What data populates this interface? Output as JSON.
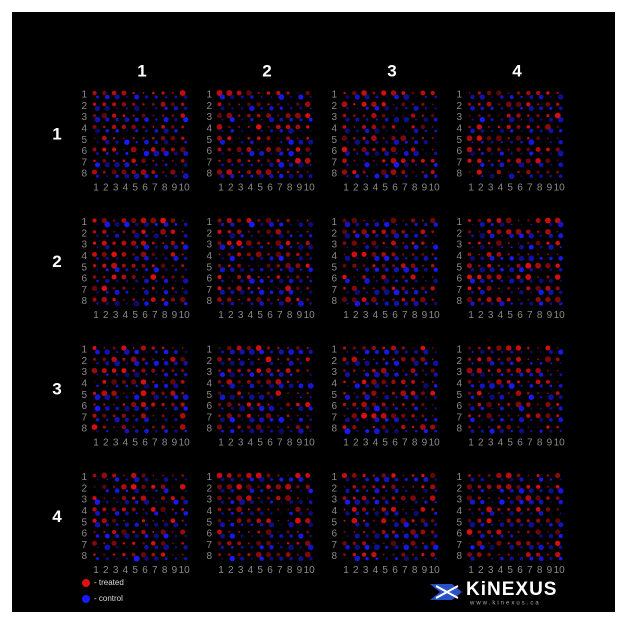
{
  "grid": {
    "column_labels": [
      "1",
      "2",
      "3",
      "4"
    ],
    "row_labels": [
      "1",
      "2",
      "3",
      "4"
    ],
    "spot_rows": [
      "1",
      "2",
      "3",
      "4",
      "5",
      "6",
      "7",
      "8"
    ],
    "spot_columns": [
      "1",
      "2",
      "3",
      "4",
      "5",
      "6",
      "7",
      "8",
      "9",
      "10"
    ]
  },
  "legend": {
    "treated": "- treated",
    "control": "- control"
  },
  "logo": {
    "name": "KiNEXUS",
    "url": "www.kinexus.ca"
  }
}
